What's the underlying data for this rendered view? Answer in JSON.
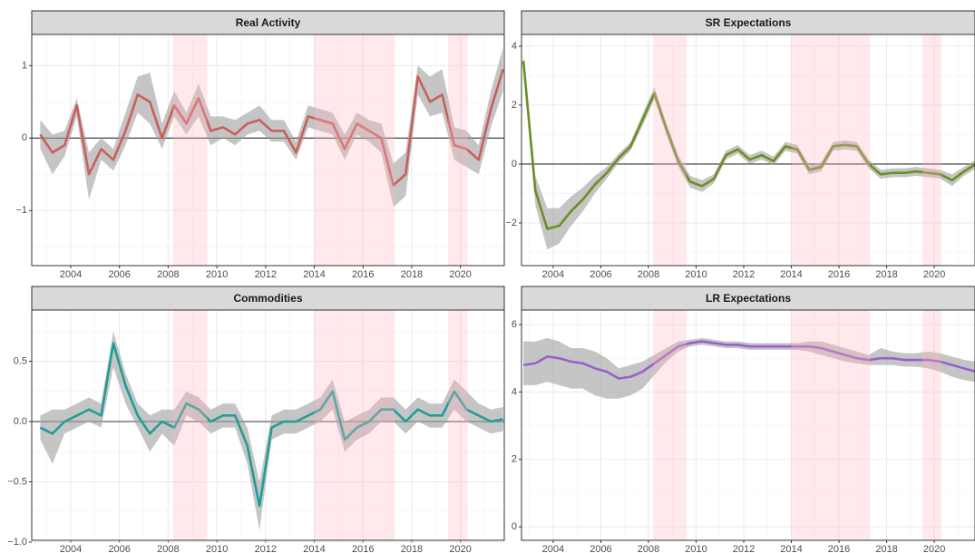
{
  "chart_data": [
    {
      "type": "line",
      "title": "Real Activity",
      "x": [
        2002.75,
        2003.25,
        2003.75,
        2004.25,
        2004.75,
        2005.25,
        2005.75,
        2006.25,
        2006.75,
        2007.25,
        2007.75,
        2008.25,
        2008.75,
        2009.25,
        2009.75,
        2010.25,
        2010.75,
        2011.25,
        2011.75,
        2012.25,
        2012.75,
        2013.25,
        2013.75,
        2014.25,
        2014.75,
        2015.25,
        2015.75,
        2016.25,
        2016.75,
        2017.25,
        2017.75,
        2018.25,
        2018.75,
        2019.25,
        2019.75,
        2020.25,
        2020.75,
        2021.25,
        2021.75
      ],
      "series": [
        {
          "color": "#c8605a",
          "values": [
            0.05,
            -0.2,
            -0.1,
            0.45,
            -0.5,
            -0.15,
            -0.3,
            0.1,
            0.6,
            0.5,
            0.0,
            0.45,
            0.2,
            0.55,
            0.1,
            0.15,
            0.05,
            0.2,
            0.25,
            0.1,
            0.1,
            -0.2,
            0.3,
            0.25,
            0.2,
            -0.15,
            0.2,
            0.1,
            0.0,
            -0.65,
            -0.5,
            0.85,
            0.5,
            0.6,
            -0.1,
            -0.15,
            -0.3,
            0.4,
            0.95
          ]
        }
      ],
      "band": {
        "lower": [
          -0.15,
          -0.5,
          -0.25,
          0.3,
          -0.85,
          -0.3,
          -0.45,
          -0.1,
          0.35,
          0.2,
          -0.15,
          0.3,
          0.05,
          0.3,
          -0.1,
          0.0,
          -0.1,
          0.05,
          0.1,
          -0.05,
          -0.05,
          -0.3,
          0.15,
          0.1,
          0.05,
          -0.3,
          0.05,
          -0.05,
          -0.2,
          -0.95,
          -0.8,
          0.6,
          0.3,
          0.35,
          -0.3,
          -0.4,
          -0.5,
          0.15,
          0.65
        ],
        "upper": [
          0.25,
          0.05,
          0.1,
          0.55,
          -0.2,
          0.0,
          -0.15,
          0.35,
          0.85,
          0.9,
          0.2,
          0.65,
          0.35,
          0.75,
          0.3,
          0.3,
          0.25,
          0.35,
          0.45,
          0.25,
          0.25,
          -0.05,
          0.45,
          0.4,
          0.35,
          0.05,
          0.35,
          0.25,
          0.2,
          -0.35,
          -0.2,
          1.0,
          0.85,
          0.95,
          0.15,
          0.1,
          -0.1,
          0.65,
          1.25
        ]
      },
      "shaded_regions": [
        [
          2008.2,
          2009.6
        ],
        [
          2014.0,
          2017.3
        ],
        [
          2019.5,
          2020.3
        ]
      ],
      "hline": 0,
      "xlim": [
        2002.4,
        2021.8
      ],
      "ylim": [
        -1.76,
        1.43
      ],
      "xticks": [
        2004,
        2006,
        2008,
        2010,
        2012,
        2014,
        2016,
        2018,
        2020
      ],
      "yticks": [
        {
          "value": -1,
          "label": "−1"
        },
        0,
        1
      ],
      "grid": true
    },
    {
      "type": "line",
      "title": "SR Expectations",
      "x": [
        2002.75,
        2003.25,
        2003.75,
        2004.25,
        2004.75,
        2005.25,
        2005.75,
        2006.25,
        2006.75,
        2007.25,
        2007.75,
        2008.25,
        2008.75,
        2009.25,
        2009.75,
        2010.25,
        2010.75,
        2011.25,
        2011.75,
        2012.25,
        2012.75,
        2013.25,
        2013.75,
        2014.25,
        2014.75,
        2015.25,
        2015.75,
        2016.25,
        2016.75,
        2017.25,
        2017.75,
        2018.25,
        2018.75,
        2019.25,
        2019.75,
        2020.25,
        2020.75,
        2021.25,
        2021.75
      ],
      "series": [
        {
          "color": "#6b8e23",
          "values": [
            3.5,
            -0.9,
            -2.2,
            -2.1,
            -1.6,
            -1.2,
            -0.7,
            -0.3,
            0.2,
            0.6,
            1.5,
            2.4,
            1.2,
            0.1,
            -0.6,
            -0.75,
            -0.5,
            0.3,
            0.5,
            0.15,
            0.3,
            0.1,
            0.6,
            0.5,
            -0.2,
            -0.1,
            0.6,
            0.65,
            0.6,
            0.0,
            -0.35,
            -0.3,
            -0.3,
            -0.25,
            -0.3,
            -0.35,
            -0.55,
            -0.25,
            0.0
          ]
        }
      ],
      "band": {
        "lower": [
          3.3,
          -1.4,
          -2.9,
          -2.7,
          -2.1,
          -1.6,
          -1.0,
          -0.5,
          0.05,
          0.45,
          1.3,
          2.2,
          1.0,
          -0.1,
          -0.8,
          -0.95,
          -0.65,
          0.15,
          0.35,
          0.0,
          0.15,
          -0.05,
          0.45,
          0.35,
          -0.35,
          -0.25,
          0.45,
          0.5,
          0.45,
          -0.15,
          -0.5,
          -0.45,
          -0.45,
          -0.4,
          -0.45,
          -0.5,
          -0.75,
          -0.4,
          -0.15
        ],
        "upper": [
          3.7,
          -0.4,
          -1.5,
          -1.5,
          -1.1,
          -0.8,
          -0.4,
          -0.1,
          0.35,
          0.75,
          1.7,
          2.6,
          1.4,
          0.3,
          -0.4,
          -0.55,
          -0.35,
          0.45,
          0.65,
          0.3,
          0.45,
          0.25,
          0.75,
          0.65,
          -0.05,
          0.05,
          0.75,
          0.8,
          0.75,
          0.15,
          -0.2,
          -0.15,
          -0.15,
          -0.1,
          -0.15,
          -0.2,
          -0.35,
          -0.1,
          0.15
        ]
      },
      "shaded_regions": [
        [
          2008.2,
          2009.6
        ],
        [
          2014.0,
          2017.3
        ],
        [
          2019.5,
          2020.3
        ]
      ],
      "hline": 0,
      "xlim": [
        2002.67,
        2021.71
      ],
      "ylim": [
        -3.45,
        4.4
      ],
      "xticks": [
        2004,
        2006,
        2008,
        2010,
        2012,
        2014,
        2016,
        2018,
        2020
      ],
      "yticks": [
        {
          "value": -2,
          "label": "−2"
        },
        0,
        2,
        4
      ],
      "grid": true
    },
    {
      "type": "line",
      "title": "Commodities",
      "x": [
        2002.75,
        2003.25,
        2003.75,
        2004.25,
        2004.75,
        2005.25,
        2005.75,
        2006.25,
        2006.75,
        2007.25,
        2007.75,
        2008.25,
        2008.75,
        2009.25,
        2009.75,
        2010.25,
        2010.75,
        2011.25,
        2011.75,
        2012.25,
        2012.75,
        2013.25,
        2013.75,
        2014.25,
        2014.75,
        2015.25,
        2015.75,
        2016.25,
        2016.75,
        2017.25,
        2017.75,
        2018.25,
        2018.75,
        2019.25,
        2019.75,
        2020.25,
        2020.75,
        2021.25,
        2021.75
      ],
      "series": [
        {
          "color": "#1f9e99",
          "values": [
            -0.05,
            -0.1,
            0.0,
            0.05,
            0.1,
            0.05,
            0.65,
            0.3,
            0.05,
            -0.1,
            0.0,
            -0.05,
            0.15,
            0.1,
            0.0,
            0.05,
            0.05,
            -0.2,
            -0.7,
            -0.05,
            0.0,
            0.0,
            0.05,
            0.1,
            0.25,
            -0.15,
            -0.05,
            0.0,
            0.1,
            0.1,
            0.0,
            0.1,
            0.05,
            0.05,
            0.25,
            0.1,
            0.05,
            0.0,
            0.02
          ]
        }
      ],
      "band": {
        "lower": [
          -0.15,
          -0.35,
          -0.1,
          -0.05,
          0.0,
          -0.05,
          0.45,
          0.15,
          -0.05,
          -0.25,
          -0.1,
          -0.2,
          0.05,
          0.0,
          -0.1,
          -0.05,
          -0.05,
          -0.35,
          -0.9,
          -0.15,
          -0.1,
          -0.1,
          -0.05,
          0.0,
          0.1,
          -0.25,
          -0.15,
          -0.1,
          0.0,
          0.0,
          -0.1,
          0.0,
          -0.05,
          -0.05,
          0.1,
          0.0,
          -0.05,
          -0.1,
          -0.08
        ],
        "upper": [
          0.05,
          0.1,
          0.1,
          0.15,
          0.2,
          0.15,
          0.75,
          0.4,
          0.15,
          0.05,
          0.1,
          0.1,
          0.25,
          0.2,
          0.1,
          0.15,
          0.15,
          -0.05,
          -0.5,
          0.05,
          0.1,
          0.1,
          0.15,
          0.2,
          0.35,
          0.0,
          0.05,
          0.1,
          0.2,
          0.2,
          0.1,
          0.2,
          0.15,
          0.15,
          0.35,
          0.25,
          0.15,
          0.1,
          0.12
        ]
      },
      "shaded_regions": [
        [
          2008.2,
          2009.6
        ],
        [
          2014.0,
          2017.3
        ],
        [
          2019.5,
          2020.3
        ]
      ],
      "hline": 0,
      "xlim": [
        2002.4,
        2021.8
      ],
      "ylim": [
        -0.985,
        0.925
      ],
      "xticks": [
        2004,
        2006,
        2008,
        2010,
        2012,
        2014,
        2016,
        2018,
        2020
      ],
      "yticks": [
        {
          "value": -1,
          "label": "−1.0"
        },
        {
          "value": -0.5,
          "label": "−0.5"
        },
        {
          "value": 0,
          "label": "0.0"
        },
        0.5
      ],
      "grid": true
    },
    {
      "type": "line",
      "title": "LR Expectations",
      "x": [
        2002.75,
        2003.25,
        2003.75,
        2004.25,
        2004.75,
        2005.25,
        2005.75,
        2006.25,
        2006.75,
        2007.25,
        2007.75,
        2008.25,
        2008.75,
        2009.25,
        2009.75,
        2010.25,
        2010.75,
        2011.25,
        2011.75,
        2012.25,
        2012.75,
        2013.25,
        2013.75,
        2014.25,
        2014.75,
        2015.25,
        2015.75,
        2016.25,
        2016.75,
        2017.25,
        2017.75,
        2018.25,
        2018.75,
        2019.25,
        2019.75,
        2020.25,
        2020.75,
        2021.25,
        2021.75
      ],
      "series": [
        {
          "color": "#9a5fcf",
          "values": [
            4.8,
            4.85,
            5.05,
            5.0,
            4.9,
            4.85,
            4.7,
            4.6,
            4.4,
            4.45,
            4.6,
            4.85,
            5.1,
            5.35,
            5.45,
            5.5,
            5.45,
            5.4,
            5.4,
            5.35,
            5.35,
            5.35,
            5.35,
            5.35,
            5.35,
            5.3,
            5.2,
            5.1,
            5.0,
            4.95,
            5.0,
            5.0,
            4.95,
            4.95,
            4.95,
            4.9,
            4.8,
            4.7,
            4.6
          ]
        }
      ],
      "band": {
        "lower": [
          4.2,
          4.2,
          4.3,
          4.2,
          4.1,
          4.1,
          3.9,
          3.8,
          3.8,
          3.9,
          4.1,
          4.5,
          4.9,
          5.2,
          5.35,
          5.4,
          5.35,
          5.3,
          5.3,
          5.25,
          5.25,
          5.25,
          5.25,
          5.25,
          5.2,
          5.1,
          5.0,
          4.9,
          4.85,
          4.8,
          4.8,
          4.8,
          4.75,
          4.75,
          4.7,
          4.6,
          4.45,
          4.35,
          4.3
        ],
        "upper": [
          5.5,
          5.5,
          5.6,
          5.5,
          5.3,
          5.3,
          5.2,
          5.0,
          4.7,
          4.8,
          4.9,
          5.1,
          5.3,
          5.5,
          5.55,
          5.6,
          5.55,
          5.5,
          5.5,
          5.45,
          5.45,
          5.45,
          5.45,
          5.45,
          5.5,
          5.5,
          5.4,
          5.3,
          5.2,
          5.1,
          5.3,
          5.2,
          5.15,
          5.15,
          5.2,
          5.15,
          5.05,
          4.95,
          4.9
        ]
      },
      "shaded_regions": [
        [
          2008.2,
          2009.6
        ],
        [
          2014.0,
          2017.3
        ],
        [
          2019.5,
          2020.3
        ]
      ],
      "xlim": [
        2002.67,
        2021.71
      ],
      "ylim": [
        -0.4,
        6.43
      ],
      "xticks": [
        2004,
        2006,
        2008,
        2010,
        2012,
        2014,
        2016,
        2018,
        2020
      ],
      "yticks": [
        0,
        2,
        4,
        6
      ],
      "grid": true
    }
  ]
}
